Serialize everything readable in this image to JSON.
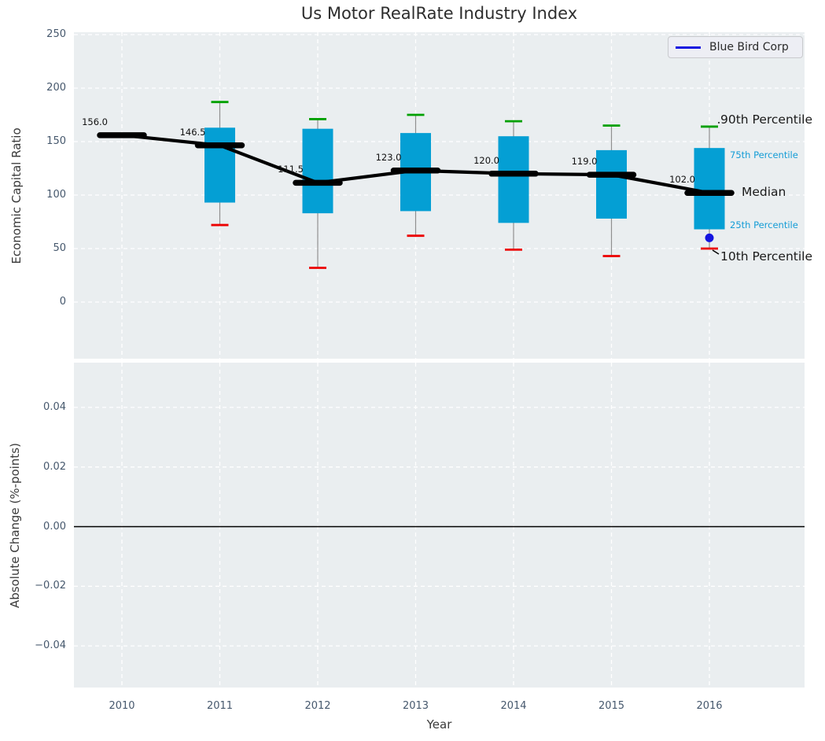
{
  "title": "Us Motor RealRate Industry Index",
  "legend": {
    "label": "Blue Bird Corp"
  },
  "axes": {
    "top": {
      "ylabel": "Economic Capital Ratio",
      "yticks": [
        {
          "label": "250",
          "value": 250
        },
        {
          "label": "200",
          "value": 200
        },
        {
          "label": "150",
          "value": 150
        },
        {
          "label": "100",
          "value": 100
        },
        {
          "label": "50",
          "value": 50
        },
        {
          "label": "0",
          "value": 0
        }
      ]
    },
    "bottom": {
      "ylabel": "Absolute Change (%-points)",
      "xlabel": "Year",
      "yticks": [
        {
          "label": "0.04",
          "value": 0.04
        },
        {
          "label": "0.02",
          "value": 0.02
        },
        {
          "label": "0.00",
          "value": 0.0
        },
        {
          "label": "−0.02",
          "value": -0.02
        },
        {
          "label": "−0.04",
          "value": -0.04
        }
      ],
      "xticks": [
        {
          "label": "2010",
          "year": 2010
        },
        {
          "label": "2011",
          "year": 2011
        },
        {
          "label": "2012",
          "year": 2012
        },
        {
          "label": "2013",
          "year": 2013
        },
        {
          "label": "2014",
          "year": 2014
        },
        {
          "label": "2015",
          "year": 2015
        },
        {
          "label": "2016",
          "year": 2016
        }
      ]
    }
  },
  "annotations": {
    "percentile_labels": [
      {
        "label": "90th Percentile",
        "anchor": "p90",
        "style": "major"
      },
      {
        "label": "75th Percentile",
        "anchor": "p75",
        "style": "minor"
      },
      {
        "label": "Median",
        "anchor": "median",
        "style": "major"
      },
      {
        "label": "25th Percentile",
        "anchor": "p25",
        "style": "minor"
      },
      {
        "label": "10th Percentile",
        "anchor": "p10",
        "style": "major"
      }
    ]
  },
  "colors": {
    "box_fill": "#049fd4",
    "p90_cap": "#00a000",
    "p10_cap": "#ec0000",
    "whisker": "#8f8f8f",
    "median_line": "#000000",
    "company_marker": "#1414e0",
    "panel_bg": "#eaeef0",
    "grid": "#ffffff",
    "tick_label": "#46586d",
    "minor_label": "#149cd6",
    "zero_line": "#000000"
  },
  "chart_data": {
    "type": "boxplot",
    "title": "Us Motor RealRate Industry Index",
    "xlabel": "Year",
    "xlim": [
      2009.5,
      2017.0
    ],
    "top_panel": {
      "ylabel": "Economic Capital Ratio",
      "ylim": [
        -53,
        252
      ],
      "grid": "white dashed, both axes",
      "legend_position": "upper right",
      "years": [
        2010,
        2011,
        2012,
        2013,
        2014,
        2015,
        2016
      ],
      "medians": [
        156.0,
        146.5,
        111.5,
        123.0,
        120.0,
        119.0,
        102.0
      ],
      "median_value_labels": [
        "156.0",
        "146.5",
        "111.5",
        "123.0",
        "120.0",
        "119.0",
        "102.0"
      ],
      "boxes": [
        {
          "year": 2011,
          "p90": 187,
          "p75": 163,
          "median": 146.5,
          "p25": 93,
          "p10": 72
        },
        {
          "year": 2012,
          "p90": 171,
          "p75": 162,
          "median": 111.5,
          "p25": 83,
          "p10": 32
        },
        {
          "year": 2013,
          "p90": 175,
          "p75": 158,
          "median": 123.0,
          "p25": 85,
          "p10": 62
        },
        {
          "year": 2014,
          "p90": 169,
          "p75": 155,
          "median": 120.0,
          "p25": 74,
          "p10": 49
        },
        {
          "year": 2015,
          "p90": 165,
          "p75": 142,
          "median": 119.0,
          "p25": 78,
          "p10": 43
        },
        {
          "year": 2016,
          "p90": 164,
          "p75": 144,
          "median": 102.0,
          "p25": 68,
          "p10": 50
        }
      ],
      "company_series": {
        "name": "Blue Bird Corp",
        "points": [
          {
            "year": 2016,
            "value": 60
          }
        ]
      }
    },
    "bottom_panel": {
      "ylabel": "Absolute Change (%-points)",
      "ylim": [
        -0.055,
        0.055
      ],
      "zero_line": 0.0,
      "series": []
    }
  }
}
